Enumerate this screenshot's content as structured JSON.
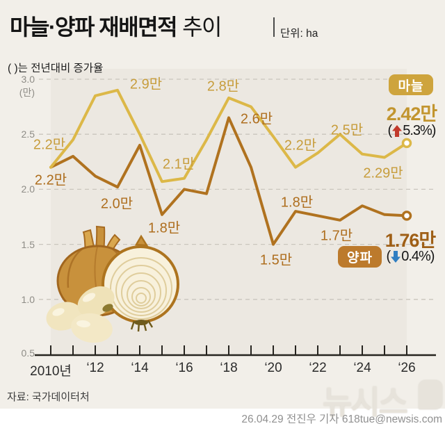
{
  "header": {
    "title_main": "마늘·양파 재배면적",
    "title_sub": "추이",
    "unit_label": "단위: ha",
    "subtitle": "( )는 전년대비 증가율"
  },
  "chart_data": {
    "type": "line",
    "title": "마늘·양파 재배면적 추이",
    "unit": "ha",
    "x": [
      2010,
      2011,
      2012,
      2013,
      2014,
      2015,
      2016,
      2017,
      2018,
      2019,
      2020,
      2021,
      2022,
      2023,
      2024,
      2025,
      2026
    ],
    "x_tick_labels": [
      "2010년",
      "‘12",
      "‘14",
      "‘16",
      "‘18",
      "‘20",
      "‘22",
      "‘24",
      "‘26"
    ],
    "y_axis": {
      "unit_label": "(만)",
      "tick_labels": [
        "3.0",
        "2.5",
        "2.0",
        "1.5",
        "1.0",
        "0.5"
      ],
      "gridlines": [
        3.0,
        2.5,
        2.0,
        1.5,
        1.0
      ],
      "range": [
        0.5,
        3.0
      ]
    },
    "legend_position": "end-of-line badges",
    "series": [
      {
        "name": "마늘",
        "color": "#DCB848",
        "values": [
          2.2,
          2.45,
          2.85,
          2.9,
          2.5,
          2.07,
          2.1,
          2.45,
          2.83,
          2.75,
          2.48,
          2.2,
          2.33,
          2.5,
          2.32,
          2.29,
          2.42
        ]
      },
      {
        "name": "양파",
        "color": "#B0721F",
        "values": [
          2.2,
          2.3,
          2.12,
          2.02,
          2.4,
          1.77,
          2.0,
          1.96,
          2.65,
          2.2,
          1.5,
          1.8,
          1.76,
          1.72,
          1.85,
          1.77,
          1.76
        ]
      }
    ],
    "garlic_point_labels": [
      "2.2만",
      "2.9만",
      "2.1만",
      "2.8만",
      "2.2만",
      "2.5만",
      "2.29만"
    ],
    "onion_point_labels": [
      "2.2만",
      "2.0만",
      "1.8만",
      "2.6만",
      "1.5만",
      "1.8만",
      "1.7만"
    ]
  },
  "garlic_callout": {
    "badge": "마늘",
    "value": "2.42만",
    "change_prefix": "(",
    "change_suffix": "5.3%)",
    "direction": "up"
  },
  "onion_callout": {
    "badge": "양파",
    "value": "1.76만",
    "change_prefix": "(",
    "change_suffix": "0.4%)",
    "direction": "down"
  },
  "colors": {
    "garlic_line": "#DCB848",
    "garlic_text": "#C79D3C",
    "garlic_badge": "#CEA43D",
    "garlic_big": "#C2952F",
    "onion_line": "#B0721F",
    "onion_text": "#AE6E1E",
    "onion_badge": "#BC7A2C",
    "onion_big": "#9F5F16",
    "up_arrow_red": "#C23A2B",
    "down_arrow_blue": "#2F7EC2"
  },
  "footer": {
    "source": "자료: 국가데이터처",
    "credit": "26.04.29 전진우 기자 618tue@newsis.com",
    "watermark": "뉴시스"
  }
}
